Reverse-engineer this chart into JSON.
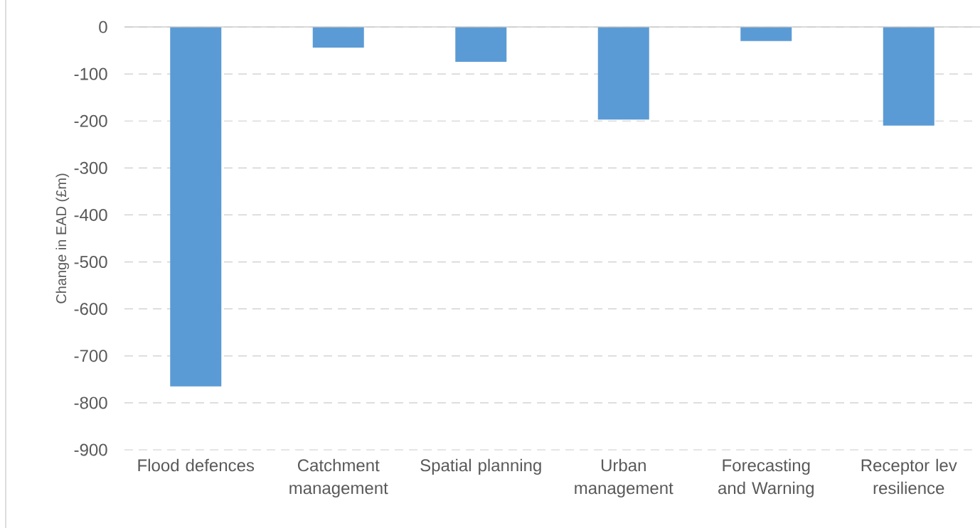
{
  "chart_data": {
    "type": "bar",
    "ylabel": "Change in EAD (£m)",
    "categories": [
      "Flood defences",
      "Catchment management",
      "Spatial planning",
      "Urban management",
      "Forecasting and Warning",
      "Receptor lev resilience"
    ],
    "values": [
      -765,
      -44,
      -74,
      -197,
      -30,
      -210
    ],
    "color": "#5b9bd5",
    "ylim": [
      -900,
      0
    ],
    "yticks": [
      0,
      -100,
      -200,
      -300,
      -400,
      -500,
      -600,
      -700,
      -800,
      -900
    ],
    "grid": "y"
  }
}
